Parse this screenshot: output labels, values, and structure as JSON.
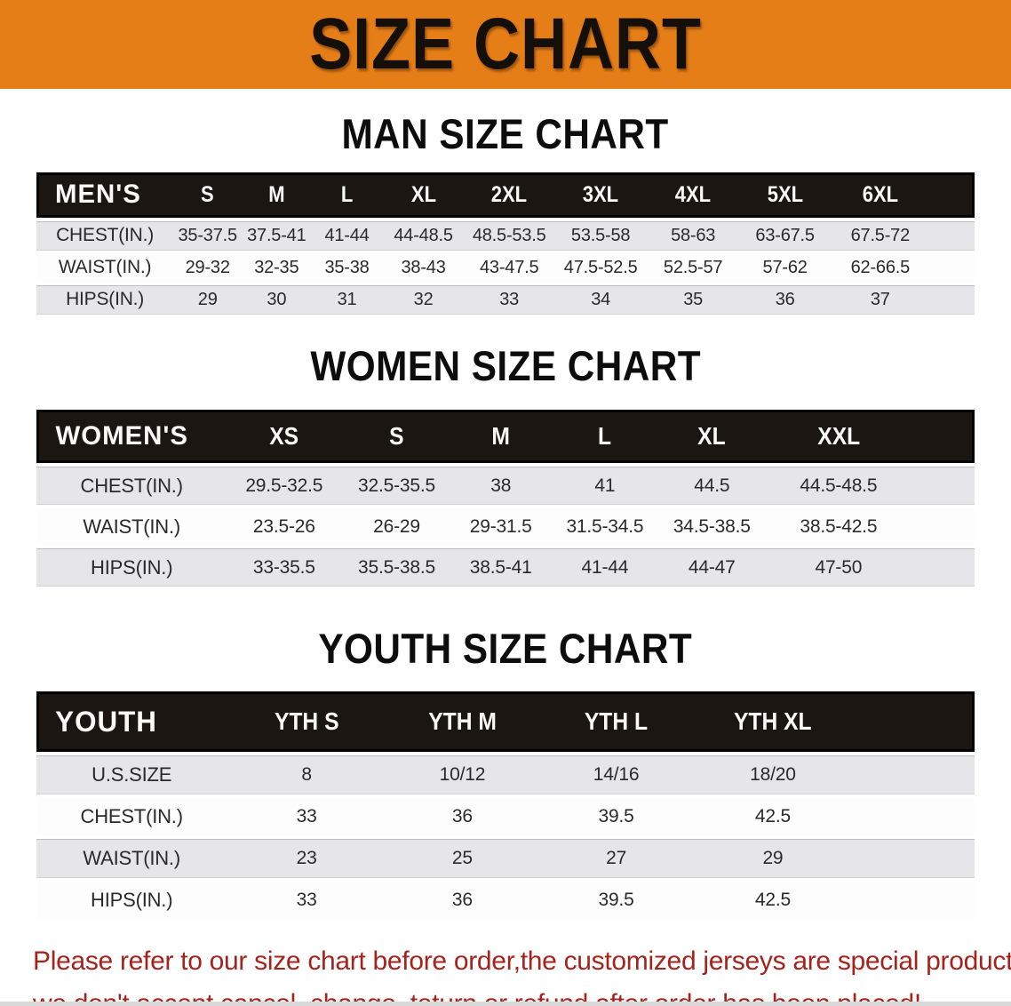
{
  "banner": {
    "title": "SIZE CHART",
    "bg_color": "#e67e17",
    "text_color": "#140f08"
  },
  "sections": [
    {
      "key": "mens",
      "heading": "MAN SIZE CHART",
      "group_label": "MEN'S",
      "columns": [
        "S",
        "M",
        "L",
        "XL",
        "2XL",
        "3XL",
        "4XL",
        "5XL",
        "6XL"
      ],
      "rows": [
        {
          "label": "CHEST(IN.)",
          "values": [
            "35-37.5",
            "37.5-41",
            "41-44",
            "44-48.5",
            "48.5-53.5",
            "53.5-58",
            "58-63",
            "63-67.5",
            "67.5-72"
          ]
        },
        {
          "label": "WAIST(IN.)",
          "values": [
            "29-32",
            "32-35",
            "35-38",
            "38-43",
            "43-47.5",
            "47.5-52.5",
            "52.5-57",
            "57-62",
            "62-66.5"
          ]
        },
        {
          "label": "HIPS(IN.)",
          "values": [
            "29",
            "30",
            "31",
            "32",
            "33",
            "34",
            "35",
            "36",
            "37"
          ]
        }
      ]
    },
    {
      "key": "womens",
      "heading": "WOMEN SIZE CHART",
      "group_label": "WOMEN'S",
      "columns": [
        "XS",
        "S",
        "M",
        "L",
        "XL",
        "XXL"
      ],
      "rows": [
        {
          "label": "CHEST(IN.)",
          "values": [
            "29.5-32.5",
            "32.5-35.5",
            "38",
            "41",
            "44.5",
            "44.5-48.5"
          ]
        },
        {
          "label": "WAIST(IN.)",
          "values": [
            "23.5-26",
            "26-29",
            "29-31.5",
            "31.5-34.5",
            "34.5-38.5",
            "38.5-42.5"
          ]
        },
        {
          "label": "HIPS(IN.)",
          "values": [
            "33-35.5",
            "35.5-38.5",
            "38.5-41",
            "41-44",
            "44-47",
            "47-50"
          ]
        }
      ]
    },
    {
      "key": "youth",
      "heading": "YOUTH SIZE CHART",
      "group_label": "YOUTH",
      "columns": [
        "YTH S",
        "YTH M",
        "YTH L",
        "YTH XL"
      ],
      "rows": [
        {
          "label": "U.S.SIZE",
          "values": [
            "8",
            "10/12",
            "14/16",
            "18/20"
          ]
        },
        {
          "label": "CHEST(IN.)",
          "values": [
            "33",
            "36",
            "39.5",
            "42.5"
          ]
        },
        {
          "label": "WAIST(IN.)",
          "values": [
            "23",
            "25",
            "27",
            "29"
          ]
        },
        {
          "label": "HIPS(IN.)",
          "values": [
            "33",
            "36",
            "39.5",
            "42.5"
          ]
        }
      ]
    }
  ],
  "footer": {
    "line1": "Please refer to our size chart before order,the customized jerseys are special products,",
    "line2": "we don't accept cancel, change, teturn or refund after order has been placed!",
    "text_color": "#a5231d"
  }
}
